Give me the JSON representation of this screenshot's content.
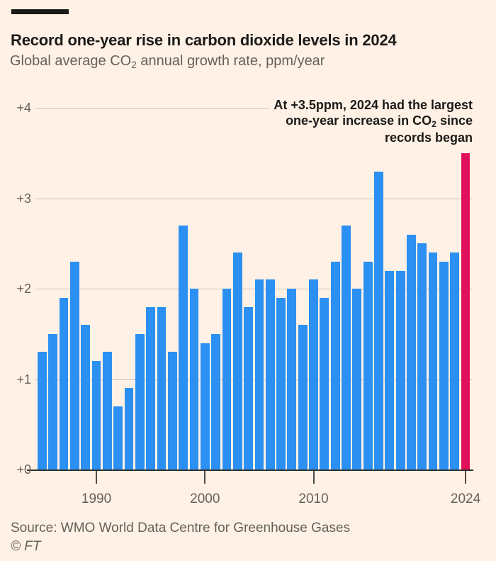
{
  "header": {
    "title": "Record one-year rise in carbon dioxide levels in 2024",
    "subtitle_pre": "Global average CO",
    "subtitle_sub": "2",
    "subtitle_post": " annual growth rate, ppm/year"
  },
  "annotation": {
    "line1": "At +3.5ppm, 2024 had the largest",
    "line2_pre": "one-year increase in CO",
    "line2_sub": "2",
    "line2_post": " since",
    "line3": "records began"
  },
  "footer": {
    "source": "Source: WMO World Data Centre for Greenhouse Gases",
    "copyright": "© FT"
  },
  "colors": {
    "paper": "#FFF1E5",
    "bar_blue": "#2B90F2",
    "bar_red": "#E0105A",
    "gridline": "#CCC2B8",
    "baseline": "#33302E",
    "tick": "#4D4845",
    "text_dark": "#1C1A18",
    "text_gray": "#66605C"
  },
  "chart_data": {
    "type": "bar",
    "title": "Record one-year rise in carbon dioxide levels in 2024",
    "subtitle": "Global average CO₂ annual growth rate, ppm/year",
    "xlabel": "",
    "ylabel": "ppm/year",
    "ylim": [
      0,
      4
    ],
    "grid": "horizontal",
    "legend": "none",
    "annotation": "At +3.5ppm, 2024 had the largest one-year increase in CO₂ since records began",
    "yticks": [
      {
        "value": 0,
        "label": "+0"
      },
      {
        "value": 1,
        "label": "+1"
      },
      {
        "value": 2,
        "label": "+2"
      },
      {
        "value": 3,
        "label": "+3"
      },
      {
        "value": 4,
        "label": "+4"
      }
    ],
    "xticks": [
      {
        "year": 1990,
        "label": "1990"
      },
      {
        "year": 2000,
        "label": "2000"
      },
      {
        "year": 2010,
        "label": "2010"
      },
      {
        "year": 2024,
        "label": "2024"
      }
    ],
    "years": [
      1985,
      1986,
      1987,
      1988,
      1989,
      1990,
      1991,
      1992,
      1993,
      1994,
      1995,
      1996,
      1997,
      1998,
      1999,
      2000,
      2001,
      2002,
      2003,
      2004,
      2005,
      2006,
      2007,
      2008,
      2009,
      2010,
      2011,
      2012,
      2013,
      2014,
      2015,
      2016,
      2017,
      2018,
      2019,
      2020,
      2021,
      2022,
      2023,
      2024
    ],
    "values": [
      1.3,
      1.5,
      1.9,
      2.3,
      1.6,
      1.2,
      1.3,
      0.7,
      0.9,
      1.5,
      1.8,
      1.8,
      1.3,
      2.7,
      2.0,
      1.4,
      1.5,
      2.0,
      2.4,
      1.8,
      2.1,
      2.1,
      1.9,
      2.0,
      1.6,
      2.1,
      1.9,
      2.3,
      2.7,
      2.0,
      2.3,
      3.3,
      2.2,
      2.2,
      2.6,
      2.5,
      2.4,
      2.3,
      2.4,
      3.5
    ],
    "highlight_year": 2024
  }
}
